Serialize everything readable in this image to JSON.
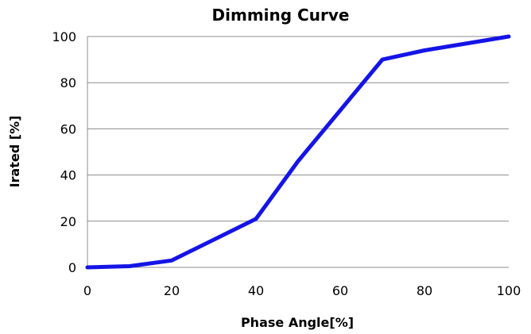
{
  "chart_data": {
    "type": "line",
    "title": "Dimming Curve",
    "xlabel": "Phase Angle[%]",
    "ylabel": "Irated [%]",
    "xlim": [
      0,
      100
    ],
    "ylim": [
      0,
      100
    ],
    "xticks": [
      0,
      20,
      40,
      60,
      80,
      100
    ],
    "yticks": [
      0,
      20,
      40,
      60,
      80,
      100
    ],
    "grid": "horizontal",
    "legend": "none",
    "series": [
      {
        "color": "#1414e6",
        "x": [
          0,
          10,
          20,
          40,
          50,
          60,
          70,
          80,
          100
        ],
        "y": [
          0,
          0.5,
          3,
          21,
          46,
          68,
          90,
          94,
          100
        ]
      }
    ]
  }
}
